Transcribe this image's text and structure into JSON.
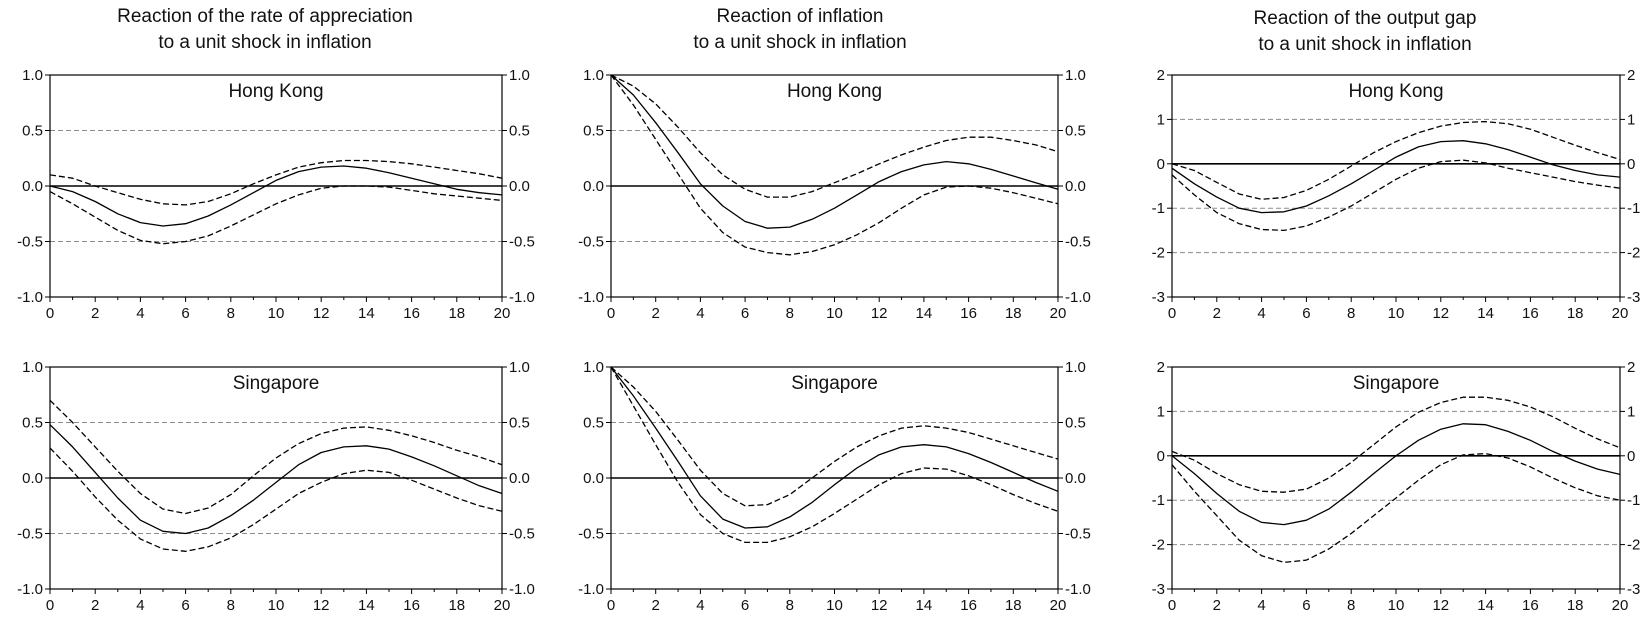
{
  "columns": [
    {
      "title_line1": "Reaction of the rate of appreciation",
      "title_line2": "to a unit shock in inflation"
    },
    {
      "title_line1": "Reaction of inflation",
      "title_line2": "to a unit shock in inflation"
    },
    {
      "title_line1": "Reaction of the output gap",
      "title_line2": "to a unit shock in inflation"
    }
  ],
  "chart_data": [
    {
      "type": "line",
      "title": "Hong Kong",
      "panel": "appreciation",
      "column": 0,
      "row": 0,
      "xlim": [
        0,
        20
      ],
      "ylim": [
        -1.0,
        1.0
      ],
      "xticks": [
        0,
        2,
        4,
        6,
        8,
        10,
        12,
        14,
        16,
        18,
        20
      ],
      "yticks": [
        "1.0",
        "0.5",
        "0.0",
        "-0.5",
        "-1.0"
      ],
      "ytick_values": [
        1.0,
        0.5,
        0.0,
        -0.5,
        -1.0
      ],
      "reference_lines": [
        {
          "y": 0.5,
          "style": "dashed-gray"
        },
        {
          "y": 0,
          "style": "solid"
        },
        {
          "y": -0.5,
          "style": "dashed-gray"
        }
      ],
      "x": [
        0,
        1,
        2,
        3,
        4,
        5,
        6,
        7,
        8,
        9,
        10,
        11,
        12,
        13,
        14,
        15,
        16,
        17,
        18,
        19,
        20
      ],
      "series": [
        {
          "style": "solid",
          "values": [
            0.0,
            -0.05,
            -0.14,
            -0.25,
            -0.33,
            -0.36,
            -0.34,
            -0.27,
            -0.17,
            -0.06,
            0.05,
            0.13,
            0.17,
            0.18,
            0.16,
            0.12,
            0.07,
            0.02,
            -0.03,
            -0.06,
            -0.08
          ]
        },
        {
          "style": "dashed",
          "values": [
            0.1,
            0.07,
            0.0,
            -0.06,
            -0.12,
            -0.16,
            -0.17,
            -0.14,
            -0.07,
            0.02,
            0.1,
            0.17,
            0.21,
            0.23,
            0.23,
            0.22,
            0.2,
            0.17,
            0.14,
            0.11,
            0.07
          ]
        },
        {
          "style": "dashed",
          "values": [
            -0.05,
            -0.16,
            -0.28,
            -0.4,
            -0.49,
            -0.52,
            -0.5,
            -0.45,
            -0.36,
            -0.26,
            -0.16,
            -0.08,
            -0.02,
            0.0,
            0.0,
            -0.01,
            -0.04,
            -0.07,
            -0.09,
            -0.11,
            -0.13
          ]
        }
      ]
    },
    {
      "type": "line",
      "title": "Hong Kong",
      "panel": "inflation",
      "column": 1,
      "row": 0,
      "xlim": [
        0,
        20
      ],
      "ylim": [
        -1.0,
        1.0
      ],
      "xticks": [
        0,
        2,
        4,
        6,
        8,
        10,
        12,
        14,
        16,
        18,
        20
      ],
      "yticks": [
        "1.0",
        "0.5",
        "0.0",
        "-0.5",
        "-1.0"
      ],
      "ytick_values": [
        1.0,
        0.5,
        0.0,
        -0.5,
        -1.0
      ],
      "reference_lines": [
        {
          "y": 0.5,
          "style": "dashed-gray"
        },
        {
          "y": 0,
          "style": "solid"
        },
        {
          "y": -0.5,
          "style": "dashed-gray"
        }
      ],
      "x": [
        0,
        1,
        2,
        3,
        4,
        5,
        6,
        7,
        8,
        9,
        10,
        11,
        12,
        13,
        14,
        15,
        16,
        17,
        18,
        19,
        20
      ],
      "series": [
        {
          "style": "solid",
          "values": [
            1.0,
            0.82,
            0.57,
            0.3,
            0.02,
            -0.18,
            -0.32,
            -0.38,
            -0.37,
            -0.3,
            -0.2,
            -0.08,
            0.04,
            0.13,
            0.19,
            0.22,
            0.2,
            0.15,
            0.09,
            0.03,
            -0.03
          ]
        },
        {
          "style": "dashed",
          "values": [
            1.0,
            0.9,
            0.74,
            0.53,
            0.3,
            0.1,
            -0.03,
            -0.1,
            -0.1,
            -0.05,
            0.03,
            0.11,
            0.2,
            0.28,
            0.35,
            0.41,
            0.44,
            0.44,
            0.41,
            0.37,
            0.31
          ]
        },
        {
          "style": "dashed",
          "values": [
            1.0,
            0.73,
            0.42,
            0.11,
            -0.2,
            -0.42,
            -0.55,
            -0.6,
            -0.62,
            -0.59,
            -0.53,
            -0.44,
            -0.33,
            -0.2,
            -0.08,
            -0.01,
            0.0,
            -0.02,
            -0.06,
            -0.11,
            -0.16
          ]
        }
      ]
    },
    {
      "type": "line",
      "title": "Hong Kong",
      "panel": "output-gap",
      "column": 2,
      "row": 0,
      "xlim": [
        0,
        20
      ],
      "ylim": [
        -3,
        2
      ],
      "xticks": [
        0,
        2,
        4,
        6,
        8,
        10,
        12,
        14,
        16,
        18,
        20
      ],
      "yticks": [
        "2",
        "1",
        "0",
        "-1",
        "-2",
        "-3"
      ],
      "ytick_values": [
        2,
        1,
        0,
        -1,
        -2,
        -3
      ],
      "reference_lines": [
        {
          "y": 1,
          "style": "dashed-gray"
        },
        {
          "y": 0,
          "style": "solid"
        },
        {
          "y": -1,
          "style": "dashed-gray"
        },
        {
          "y": -2,
          "style": "dashed-gray"
        }
      ],
      "x": [
        0,
        1,
        2,
        3,
        4,
        5,
        6,
        7,
        8,
        9,
        10,
        11,
        12,
        13,
        14,
        15,
        16,
        17,
        18,
        19,
        20
      ],
      "series": [
        {
          "style": "solid",
          "values": [
            -0.1,
            -0.45,
            -0.75,
            -1.0,
            -1.1,
            -1.08,
            -0.95,
            -0.72,
            -0.45,
            -0.15,
            0.15,
            0.38,
            0.5,
            0.52,
            0.45,
            0.32,
            0.15,
            -0.02,
            -0.15,
            -0.25,
            -0.3
          ]
        },
        {
          "style": "dashed",
          "values": [
            0.0,
            -0.15,
            -0.42,
            -0.68,
            -0.8,
            -0.76,
            -0.6,
            -0.35,
            -0.05,
            0.25,
            0.5,
            0.7,
            0.85,
            0.93,
            0.95,
            0.9,
            0.78,
            0.6,
            0.42,
            0.25,
            0.1
          ]
        },
        {
          "style": "dashed",
          "values": [
            -0.25,
            -0.7,
            -1.1,
            -1.35,
            -1.48,
            -1.5,
            -1.4,
            -1.2,
            -0.95,
            -0.65,
            -0.35,
            -0.1,
            0.05,
            0.08,
            0.02,
            -0.1,
            -0.2,
            -0.3,
            -0.4,
            -0.48,
            -0.55
          ]
        }
      ]
    },
    {
      "type": "line",
      "title": "Singapore",
      "panel": "appreciation",
      "column": 0,
      "row": 1,
      "xlim": [
        0,
        20
      ],
      "ylim": [
        -1.0,
        1.0
      ],
      "xticks": [
        0,
        2,
        4,
        6,
        8,
        10,
        12,
        14,
        16,
        18,
        20
      ],
      "yticks": [
        "1.0",
        "0.5",
        "0.0",
        "-0.5",
        "-1.0"
      ],
      "ytick_values": [
        1.0,
        0.5,
        0.0,
        -0.5,
        -1.0
      ],
      "reference_lines": [
        {
          "y": 0.5,
          "style": "dashed-gray"
        },
        {
          "y": 0,
          "style": "solid"
        },
        {
          "y": -0.5,
          "style": "dashed-gray"
        }
      ],
      "x": [
        0,
        1,
        2,
        3,
        4,
        5,
        6,
        7,
        8,
        9,
        10,
        11,
        12,
        13,
        14,
        15,
        16,
        17,
        18,
        19,
        20
      ],
      "series": [
        {
          "style": "solid",
          "values": [
            0.48,
            0.28,
            0.05,
            -0.18,
            -0.38,
            -0.48,
            -0.5,
            -0.45,
            -0.34,
            -0.2,
            -0.04,
            0.12,
            0.23,
            0.28,
            0.29,
            0.26,
            0.19,
            0.11,
            0.02,
            -0.07,
            -0.14
          ]
        },
        {
          "style": "dashed",
          "values": [
            0.7,
            0.5,
            0.28,
            0.06,
            -0.14,
            -0.28,
            -0.32,
            -0.27,
            -0.15,
            0.02,
            0.18,
            0.31,
            0.4,
            0.45,
            0.46,
            0.43,
            0.38,
            0.32,
            0.25,
            0.19,
            0.12
          ]
        },
        {
          "style": "dashed",
          "values": [
            0.27,
            0.06,
            -0.17,
            -0.38,
            -0.55,
            -0.64,
            -0.66,
            -0.62,
            -0.54,
            -0.42,
            -0.28,
            -0.14,
            -0.04,
            0.04,
            0.07,
            0.05,
            -0.02,
            -0.1,
            -0.18,
            -0.25,
            -0.3
          ]
        }
      ]
    },
    {
      "type": "line",
      "title": "Singapore",
      "panel": "inflation",
      "column": 1,
      "row": 1,
      "xlim": [
        0,
        20
      ],
      "ylim": [
        -1.0,
        1.0
      ],
      "xticks": [
        0,
        2,
        4,
        6,
        8,
        10,
        12,
        14,
        16,
        18,
        20
      ],
      "yticks": [
        "1.0",
        "0.5",
        "0.0",
        "-0.5",
        "-1.0"
      ],
      "ytick_values": [
        1.0,
        0.5,
        0.0,
        -0.5,
        -1.0
      ],
      "reference_lines": [
        {
          "y": 0.5,
          "style": "dashed-gray"
        },
        {
          "y": 0,
          "style": "solid"
        },
        {
          "y": -0.5,
          "style": "dashed-gray"
        }
      ],
      "x": [
        0,
        1,
        2,
        3,
        4,
        5,
        6,
        7,
        8,
        9,
        10,
        11,
        12,
        13,
        14,
        15,
        16,
        17,
        18,
        19,
        20
      ],
      "series": [
        {
          "style": "solid",
          "values": [
            1.0,
            0.74,
            0.45,
            0.15,
            -0.16,
            -0.37,
            -0.45,
            -0.44,
            -0.35,
            -0.22,
            -0.06,
            0.09,
            0.21,
            0.28,
            0.3,
            0.28,
            0.22,
            0.14,
            0.05,
            -0.04,
            -0.12
          ]
        },
        {
          "style": "dashed",
          "values": [
            1.0,
            0.82,
            0.6,
            0.34,
            0.07,
            -0.14,
            -0.25,
            -0.24,
            -0.15,
            0.0,
            0.15,
            0.28,
            0.38,
            0.45,
            0.47,
            0.45,
            0.41,
            0.35,
            0.29,
            0.23,
            0.17
          ]
        },
        {
          "style": "dashed",
          "values": [
            1.0,
            0.65,
            0.3,
            -0.04,
            -0.33,
            -0.5,
            -0.58,
            -0.58,
            -0.53,
            -0.44,
            -0.32,
            -0.19,
            -0.06,
            0.04,
            0.09,
            0.08,
            0.02,
            -0.06,
            -0.15,
            -0.23,
            -0.3
          ]
        }
      ]
    },
    {
      "type": "line",
      "title": "Singapore",
      "panel": "output-gap",
      "column": 2,
      "row": 1,
      "xlim": [
        0,
        20
      ],
      "ylim": [
        -3,
        2
      ],
      "xticks": [
        0,
        2,
        4,
        6,
        8,
        10,
        12,
        14,
        16,
        18,
        20
      ],
      "yticks": [
        "2",
        "1",
        "0",
        "-1",
        "-2",
        "-3"
      ],
      "ytick_values": [
        2,
        1,
        0,
        -1,
        -2,
        -3
      ],
      "reference_lines": [
        {
          "y": 1,
          "style": "dashed-gray"
        },
        {
          "y": 0,
          "style": "solid"
        },
        {
          "y": -1,
          "style": "dashed-gray"
        },
        {
          "y": -2,
          "style": "dashed-gray"
        }
      ],
      "x": [
        0,
        1,
        2,
        3,
        4,
        5,
        6,
        7,
        8,
        9,
        10,
        11,
        12,
        13,
        14,
        15,
        16,
        17,
        18,
        19,
        20
      ],
      "series": [
        {
          "style": "solid",
          "values": [
            0.0,
            -0.4,
            -0.85,
            -1.25,
            -1.5,
            -1.55,
            -1.45,
            -1.2,
            -0.82,
            -0.4,
            0.0,
            0.35,
            0.6,
            0.72,
            0.7,
            0.55,
            0.35,
            0.1,
            -0.12,
            -0.3,
            -0.42
          ]
        },
        {
          "style": "dashed",
          "values": [
            0.1,
            -0.1,
            -0.4,
            -0.65,
            -0.8,
            -0.82,
            -0.75,
            -0.5,
            -0.15,
            0.25,
            0.65,
            0.98,
            1.2,
            1.32,
            1.32,
            1.25,
            1.1,
            0.88,
            0.62,
            0.38,
            0.18
          ]
        },
        {
          "style": "dashed",
          "values": [
            -0.2,
            -0.8,
            -1.35,
            -1.9,
            -2.25,
            -2.4,
            -2.35,
            -2.1,
            -1.75,
            -1.35,
            -0.95,
            -0.55,
            -0.2,
            0.02,
            0.05,
            -0.05,
            -0.25,
            -0.5,
            -0.72,
            -0.9,
            -1.0
          ]
        }
      ]
    }
  ]
}
